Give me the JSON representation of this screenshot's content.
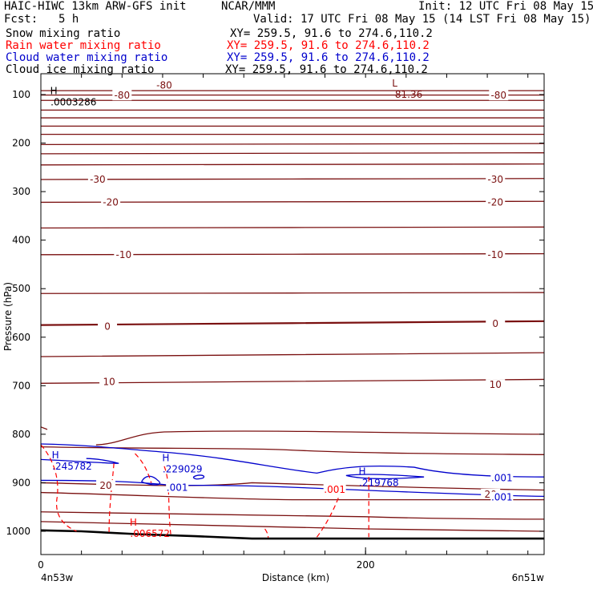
{
  "header": {
    "model": "HAIC-HIWC 13km ARW-GFS init",
    "org": "NCAR/MMM",
    "init": "Init: 12 UTC Fri 08 May 15",
    "fcst_label": "Fcst:",
    "fcst_value": "5 h",
    "valid": "Valid: 17 UTC Fri 08 May 15 (14 LST Fri 08 May 15)"
  },
  "fields": [
    {
      "name": "Snow mixing ratio",
      "xy": "XY= 259.5, 91.6 to 274.6,110.2",
      "color": "#000000"
    },
    {
      "name": "Rain water mixing ratio",
      "xy": "XY= 259.5, 91.6 to 274.6,110.2",
      "color": "#ff0000"
    },
    {
      "name": "Cloud water mixing ratio",
      "xy": "XY= 259.5, 91.6 to 274.6,110.2",
      "color": "#0000cc"
    },
    {
      "name": "Cloud ice mixing ratio",
      "xy": "XY= 259.5, 91.6 to 274.6,110.2",
      "color": "#000000"
    }
  ],
  "chart_data": {
    "type": "contour",
    "ylabel": "Pressure (hPa)",
    "xlabel": "Distance (km)",
    "x_ticks": [
      "0",
      "200"
    ],
    "x_range": [
      0,
      310
    ],
    "y_range": [
      1040,
      70
    ],
    "y_ticks": [
      100,
      200,
      300,
      400,
      500,
      600,
      700,
      800,
      900,
      1000
    ],
    "left_endpoint": "4n53w",
    "right_endpoint": "6n51w",
    "contour_color": "#7a1010",
    "temperature_labels": [
      {
        "text": "-80",
        "x": 76,
        "p": 81
      },
      {
        "text": "-80",
        "x": 50,
        "p": 102
      },
      {
        "text": "-80",
        "x": 282,
        "p": 102
      },
      {
        "text": "-30",
        "x": 35,
        "p": 275
      },
      {
        "text": "-30",
        "x": 280,
        "p": 275
      },
      {
        "text": "-20",
        "x": 43,
        "p": 322
      },
      {
        "text": "-20",
        "x": 280,
        "p": 322
      },
      {
        "text": "-10",
        "x": 51,
        "p": 430
      },
      {
        "text": "-10",
        "x": 280,
        "p": 430
      },
      {
        "text": "0",
        "x": 41,
        "p": 578
      },
      {
        "text": "0",
        "x": 280,
        "p": 572
      },
      {
        "text": "10",
        "x": 42,
        "p": 692
      },
      {
        "text": "10",
        "x": 280,
        "p": 698
      },
      {
        "text": "20",
        "x": 40,
        "p": 906
      },
      {
        "text": "20",
        "x": 277,
        "p": 924
      }
    ],
    "extrema": [
      {
        "kind": "H",
        "value": ".0003286",
        "x": 6,
        "p": 106,
        "color": "#000000"
      },
      {
        "kind": "L",
        "value": "-81.36",
        "x": 216,
        "p": 90,
        "color": "#7a1010"
      },
      {
        "kind": "H",
        "value": ".245782",
        "x": 7,
        "p": 856,
        "color": "#0000cc"
      },
      {
        "kind": "H",
        "value": ".229029",
        "x": 75,
        "p": 862,
        "color": "#0000cc"
      },
      {
        "kind": "H",
        "value": ".219768",
        "x": 196,
        "p": 890,
        "color": "#0000cc"
      },
      {
        "kind": "H",
        "value": ".006572",
        "x": 55,
        "p": 995,
        "color": "#ff0000"
      }
    ],
    "contour_value_labels": [
      {
        "text": ".001",
        "x": 84,
        "p": 910,
        "color": "#0000cc"
      },
      {
        "text": ".001",
        "x": 284,
        "p": 890,
        "color": "#0000cc"
      },
      {
        "text": ".001",
        "x": 284,
        "p": 930,
        "color": "#0000cc"
      },
      {
        "text": ".001",
        "x": 181,
        "p": 914,
        "color": "#ff0000"
      }
    ]
  }
}
